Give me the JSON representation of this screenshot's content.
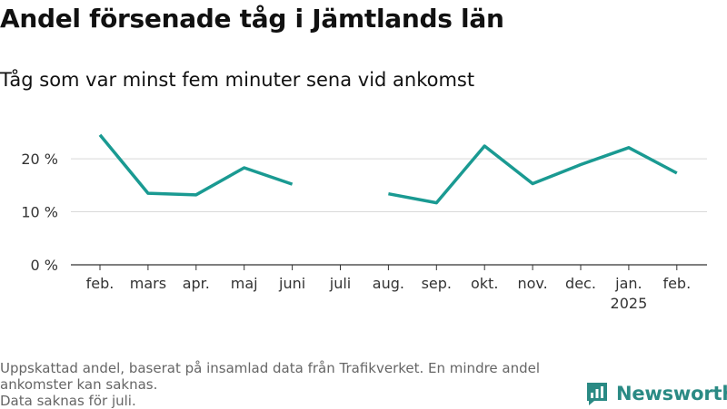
{
  "title": "Andel försenade tåg i Jämtlands län",
  "subtitle": "Tåg som var minst fem minuter sena vid ankomst",
  "footer": {
    "line1": "Uppskattad andel, baserat på insamlad data från Trafikverket. En mindre andel ankomster kan saknas.",
    "line2": "Data saknas för juli."
  },
  "brand": {
    "name": "Newsworthy",
    "icon": "bar-chart-logo-icon"
  },
  "colors": {
    "line": "#1a9a92",
    "grid": "#d9d9d9",
    "axis": "#333333",
    "brand": "#2a8a84"
  },
  "chart_data": {
    "type": "line",
    "categories": [
      "feb.",
      "mars",
      "apr.",
      "maj",
      "juni",
      "juli",
      "aug.",
      "sep.",
      "okt.",
      "nov.",
      "dec.",
      "jan.",
      "feb."
    ],
    "year_labels": [
      "",
      "",
      "",
      "",
      "",
      "",
      "",
      "",
      "",
      "",
      "",
      "2025",
      ""
    ],
    "values": [
      24.5,
      13.5,
      13.2,
      18.3,
      15.2,
      null,
      13.4,
      11.7,
      22.4,
      15.3,
      18.9,
      22.1,
      17.3
    ],
    "yticks": [
      0,
      10,
      20
    ],
    "ytick_labels": [
      "0 %",
      "10 %",
      "20 %"
    ],
    "ylim": [
      0,
      26
    ],
    "grid": true
  }
}
